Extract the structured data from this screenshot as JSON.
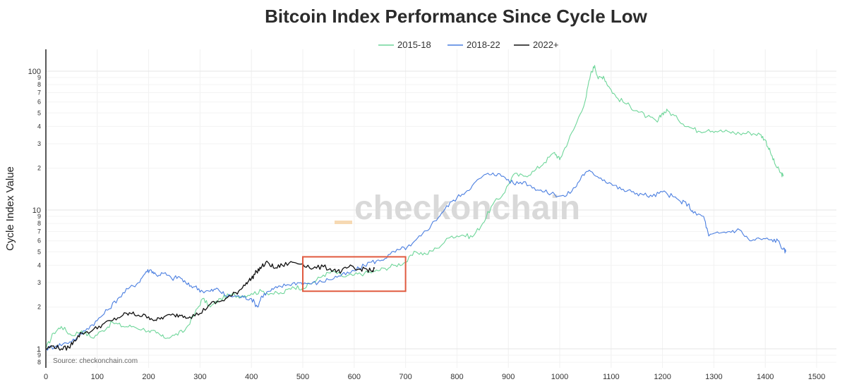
{
  "chart_data": {
    "type": "line",
    "title": "Bitcoin Index Performance Since Cycle Low",
    "xlabel": "",
    "ylabel": "Cycle Index Value",
    "y_scale": "log",
    "xlim": [
      0,
      1550
    ],
    "ylim": [
      0.78,
      150
    ],
    "x_ticks": [
      0,
      100,
      200,
      300,
      400,
      500,
      600,
      700,
      800,
      900,
      1000,
      1100,
      1200,
      1300,
      1400,
      1500
    ],
    "y_major_ticks": [
      {
        "value": 1,
        "label": "1"
      },
      {
        "value": 10,
        "label": "10"
      },
      {
        "value": 100,
        "label": "100"
      }
    ],
    "y_minor_ticks": [
      {
        "value": 0.8,
        "label": "8"
      },
      {
        "value": 0.9,
        "label": "9"
      },
      {
        "value": 2,
        "label": "2"
      },
      {
        "value": 3,
        "label": "3"
      },
      {
        "value": 4,
        "label": "4"
      },
      {
        "value": 5,
        "label": "5"
      },
      {
        "value": 6,
        "label": "6"
      },
      {
        "value": 7,
        "label": "7"
      },
      {
        "value": 8,
        "label": "8"
      },
      {
        "value": 9,
        "label": "9"
      },
      {
        "value": 20,
        "label": "2"
      },
      {
        "value": 30,
        "label": "3"
      },
      {
        "value": 40,
        "label": "4"
      },
      {
        "value": 50,
        "label": "5"
      },
      {
        "value": 60,
        "label": "6"
      },
      {
        "value": 70,
        "label": "7"
      },
      {
        "value": 80,
        "label": "8"
      },
      {
        "value": 90,
        "label": "9"
      }
    ],
    "grid": true,
    "legend_position": "top-center",
    "series": [
      {
        "name": "2015-18",
        "color": "#6fd69a",
        "points": [
          [
            0,
            1.0
          ],
          [
            15,
            1.3
          ],
          [
            30,
            1.45
          ],
          [
            50,
            1.25
          ],
          [
            70,
            1.35
          ],
          [
            90,
            1.2
          ],
          [
            110,
            1.35
          ],
          [
            130,
            1.55
          ],
          [
            150,
            1.45
          ],
          [
            170,
            1.45
          ],
          [
            200,
            1.35
          ],
          [
            215,
            1.3
          ],
          [
            230,
            1.2
          ],
          [
            250,
            1.25
          ],
          [
            270,
            1.35
          ],
          [
            290,
            1.8
          ],
          [
            305,
            2.3
          ],
          [
            320,
            2.0
          ],
          [
            340,
            2.3
          ],
          [
            360,
            2.45
          ],
          [
            380,
            2.4
          ],
          [
            400,
            2.5
          ],
          [
            420,
            2.6
          ],
          [
            440,
            2.5
          ],
          [
            460,
            2.5
          ],
          [
            480,
            2.8
          ],
          [
            500,
            2.75
          ],
          [
            520,
            3.0
          ],
          [
            540,
            3.4
          ],
          [
            560,
            3.6
          ],
          [
            580,
            3.3
          ],
          [
            600,
            3.4
          ],
          [
            620,
            3.5
          ],
          [
            640,
            3.6
          ],
          [
            660,
            3.8
          ],
          [
            680,
            4.0
          ],
          [
            700,
            4.2
          ],
          [
            720,
            5.0
          ],
          [
            740,
            4.8
          ],
          [
            760,
            5.3
          ],
          [
            790,
            6.5
          ],
          [
            810,
            6.6
          ],
          [
            830,
            6.4
          ],
          [
            850,
            8.0
          ],
          [
            870,
            11.0
          ],
          [
            890,
            13.0
          ],
          [
            910,
            18.0
          ],
          [
            930,
            17.5
          ],
          [
            950,
            19.0
          ],
          [
            970,
            22.0
          ],
          [
            990,
            26.0
          ],
          [
            1000,
            23.0
          ],
          [
            1010,
            28.0
          ],
          [
            1030,
            40.0
          ],
          [
            1050,
            62.0
          ],
          [
            1060,
            95.0
          ],
          [
            1068,
            110.0
          ],
          [
            1075,
            88.0
          ],
          [
            1085,
            92.0
          ],
          [
            1095,
            78.0
          ],
          [
            1110,
            65.0
          ],
          [
            1130,
            58.0
          ],
          [
            1150,
            52.0
          ],
          [
            1170,
            47.0
          ],
          [
            1190,
            43.0
          ],
          [
            1200,
            50.0
          ],
          [
            1210,
            52.0
          ],
          [
            1230,
            45.0
          ],
          [
            1250,
            40.0
          ],
          [
            1270,
            37.0
          ],
          [
            1290,
            38.0
          ],
          [
            1310,
            37.0
          ],
          [
            1330,
            36.5
          ],
          [
            1350,
            35.5
          ],
          [
            1370,
            36.0
          ],
          [
            1390,
            35.0
          ],
          [
            1400,
            32.0
          ],
          [
            1410,
            26.0
          ],
          [
            1420,
            21.0
          ],
          [
            1430,
            18.5
          ],
          [
            1435,
            17.5
          ]
        ]
      },
      {
        "name": "2018-22",
        "color": "#4a7ee0",
        "points": [
          [
            0,
            1.0
          ],
          [
            20,
            1.05
          ],
          [
            40,
            1.1
          ],
          [
            60,
            1.2
          ],
          [
            80,
            1.4
          ],
          [
            100,
            1.6
          ],
          [
            120,
            1.9
          ],
          [
            140,
            2.3
          ],
          [
            160,
            2.7
          ],
          [
            180,
            3.0
          ],
          [
            195,
            3.6
          ],
          [
            205,
            3.7
          ],
          [
            215,
            3.4
          ],
          [
            230,
            3.5
          ],
          [
            245,
            3.2
          ],
          [
            260,
            3.3
          ],
          [
            275,
            2.9
          ],
          [
            290,
            2.8
          ],
          [
            305,
            2.6
          ],
          [
            320,
            2.6
          ],
          [
            335,
            2.7
          ],
          [
            350,
            2.4
          ],
          [
            370,
            2.4
          ],
          [
            385,
            2.35
          ],
          [
            400,
            2.3
          ],
          [
            412,
            2.0
          ],
          [
            420,
            2.4
          ],
          [
            435,
            2.6
          ],
          [
            450,
            2.75
          ],
          [
            470,
            2.9
          ],
          [
            490,
            3.0
          ],
          [
            510,
            2.95
          ],
          [
            530,
            3.0
          ],
          [
            550,
            3.15
          ],
          [
            570,
            3.35
          ],
          [
            590,
            3.5
          ],
          [
            610,
            3.8
          ],
          [
            630,
            4.2
          ],
          [
            650,
            4.3
          ],
          [
            670,
            4.8
          ],
          [
            690,
            5.2
          ],
          [
            710,
            5.5
          ],
          [
            730,
            6.5
          ],
          [
            750,
            7.8
          ],
          [
            770,
            9.5
          ],
          [
            790,
            11.5
          ],
          [
            810,
            13.0
          ],
          [
            830,
            15.0
          ],
          [
            850,
            17.5
          ],
          [
            870,
            18.5
          ],
          [
            890,
            17.5
          ],
          [
            910,
            15.5
          ],
          [
            930,
            16.0
          ],
          [
            950,
            14.5
          ],
          [
            970,
            13.5
          ],
          [
            990,
            13.0
          ],
          [
            1010,
            12.5
          ],
          [
            1030,
            14.5
          ],
          [
            1045,
            18.0
          ],
          [
            1060,
            19.0
          ],
          [
            1080,
            17.0
          ],
          [
            1100,
            15.5
          ],
          [
            1120,
            14.0
          ],
          [
            1140,
            13.5
          ],
          [
            1160,
            13.0
          ],
          [
            1180,
            12.5
          ],
          [
            1200,
            13.5
          ],
          [
            1220,
            12.5
          ],
          [
            1235,
            11.5
          ],
          [
            1250,
            11.0
          ],
          [
            1260,
            9.5
          ],
          [
            1280,
            9.0
          ],
          [
            1290,
            6.5
          ],
          [
            1310,
            6.8
          ],
          [
            1330,
            7.0
          ],
          [
            1350,
            7.2
          ],
          [
            1370,
            6.0
          ],
          [
            1390,
            6.2
          ],
          [
            1410,
            6.1
          ],
          [
            1425,
            6.0
          ],
          [
            1435,
            5.2
          ],
          [
            1440,
            5.0
          ]
        ]
      },
      {
        "name": "2022+",
        "color": "#111111",
        "points": [
          [
            0,
            1.0
          ],
          [
            15,
            1.05
          ],
          [
            30,
            1.0
          ],
          [
            45,
            1.02
          ],
          [
            55,
            1.15
          ],
          [
            70,
            1.3
          ],
          [
            90,
            1.35
          ],
          [
            110,
            1.5
          ],
          [
            130,
            1.6
          ],
          [
            150,
            1.75
          ],
          [
            165,
            1.8
          ],
          [
            180,
            1.75
          ],
          [
            200,
            1.7
          ],
          [
            215,
            1.6
          ],
          [
            230,
            1.7
          ],
          [
            250,
            1.75
          ],
          [
            265,
            1.75
          ],
          [
            280,
            1.7
          ],
          [
            300,
            1.8
          ],
          [
            320,
            2.1
          ],
          [
            340,
            2.2
          ],
          [
            360,
            2.4
          ],
          [
            375,
            2.6
          ],
          [
            390,
            3.0
          ],
          [
            400,
            3.2
          ],
          [
            410,
            3.6
          ],
          [
            420,
            3.9
          ],
          [
            432,
            4.2
          ],
          [
            445,
            3.8
          ],
          [
            460,
            4.0
          ],
          [
            480,
            4.2
          ],
          [
            500,
            4.1
          ],
          [
            520,
            3.8
          ],
          [
            540,
            3.9
          ],
          [
            560,
            3.7
          ],
          [
            575,
            3.6
          ],
          [
            590,
            3.9
          ],
          [
            605,
            3.7
          ],
          [
            620,
            3.8
          ],
          [
            635,
            3.6
          ],
          [
            640,
            3.8
          ]
        ]
      }
    ],
    "annotations": {
      "source": "Source: checkonchain.com",
      "watermark": "checkonchain",
      "highlight_box": {
        "x_range": [
          500,
          700
        ],
        "y_range": [
          2.6,
          4.6
        ],
        "color": "#e05a3f"
      }
    }
  }
}
